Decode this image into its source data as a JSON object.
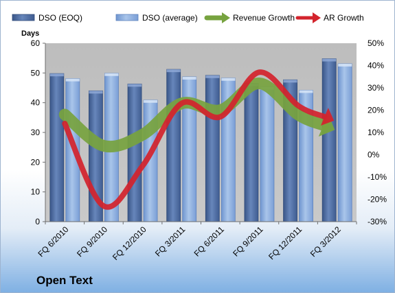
{
  "chart_data": {
    "type": "bar",
    "company": "Open Text",
    "categories": [
      "FQ 6/2010",
      "FQ 9/2010",
      "FQ 12/2010",
      "FQ 3/2011",
      "FQ 6/2011",
      "FQ 9/2011",
      "FQ 12/2011",
      "FQ 3/2012"
    ],
    "series": [
      {
        "name": "DSO (EOQ)",
        "kind": "bar",
        "axis": "left",
        "color": "#4f6fa6",
        "values": [
          49.8,
          44.0,
          46.3,
          51.2,
          49.2,
          46.5,
          47.7,
          54.8
        ]
      },
      {
        "name": "DSO (average)",
        "kind": "bar",
        "axis": "left",
        "color": "#8fb2e0",
        "values": [
          48.1,
          49.9,
          40.9,
          48.7,
          48.3,
          45.3,
          44.2,
          53.1
        ]
      },
      {
        "name": "Revenue Growth",
        "kind": "arrow-line",
        "axis": "right",
        "color": "#77a33f",
        "values": [
          0.18,
          0.04,
          0.09,
          0.23,
          0.2,
          0.32,
          0.18,
          0.12
        ]
      },
      {
        "name": "AR Growth",
        "kind": "arrow-line",
        "axis": "right",
        "color": "#d3242d",
        "values": [
          0.14,
          -0.23,
          -0.05,
          0.23,
          0.17,
          0.37,
          0.22,
          0.16
        ]
      }
    ],
    "ylabel": "Days",
    "ylim": [
      0,
      60
    ],
    "yticks": [
      0,
      10,
      20,
      30,
      40,
      50,
      60
    ],
    "y2lim": [
      -0.3,
      0.5
    ],
    "y2ticks": [
      "-30%",
      "-20%",
      "-10%",
      "0%",
      "10%",
      "20%",
      "30%",
      "40%",
      "50%"
    ],
    "legend_position": "top",
    "grid": false
  }
}
